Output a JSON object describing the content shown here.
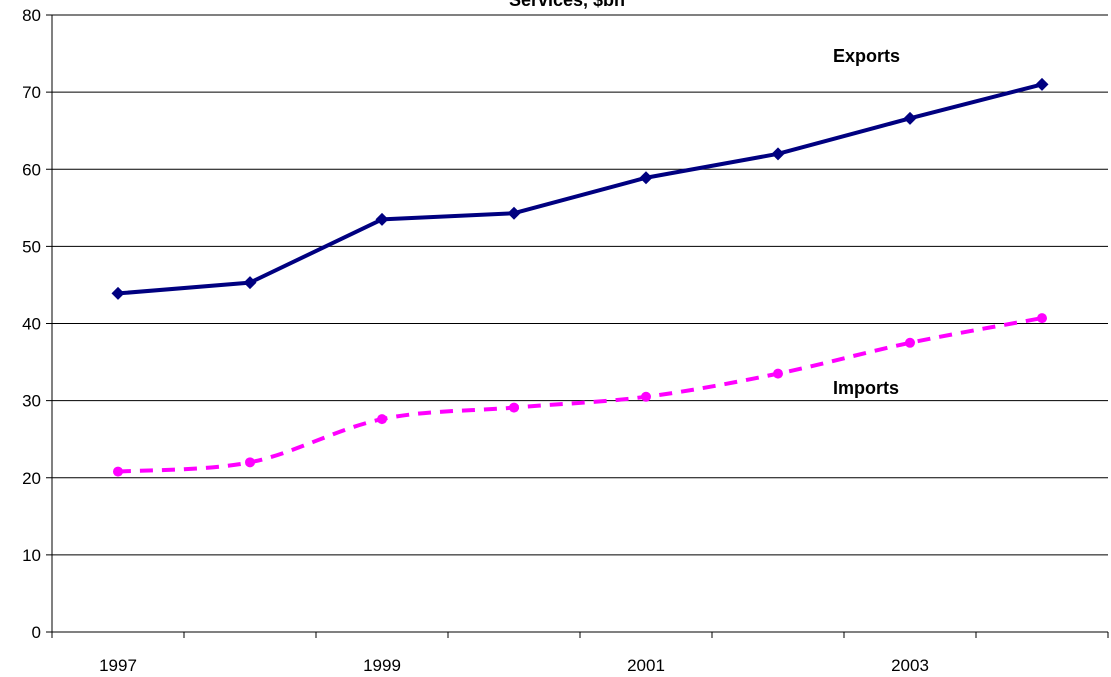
{
  "chart_data": {
    "type": "line",
    "title": "Services, $bn",
    "categories": [
      "1997",
      "1998",
      "1999",
      "2000",
      "2001",
      "2002",
      "2003",
      "2004"
    ],
    "x_tick_labels": [
      "1997",
      "",
      "1999",
      "",
      "2001",
      "",
      "2003",
      ""
    ],
    "ylim": [
      0,
      80
    ],
    "yticks": [
      0,
      10,
      20,
      30,
      40,
      50,
      60,
      70,
      80
    ],
    "grid": true,
    "series": [
      {
        "name": "Exports",
        "values": [
          43.9,
          45.3,
          53.5,
          54.3,
          58.9,
          62.0,
          66.6,
          71.0
        ],
        "color": "#000080",
        "line_style": "solid",
        "marker": "diamond"
      },
      {
        "name": "Imports",
        "values": [
          20.8,
          22.0,
          27.6,
          29.1,
          30.5,
          33.5,
          37.5,
          40.7
        ],
        "color": "#ff00ff",
        "line_style": "dashed",
        "marker": "circle"
      }
    ]
  }
}
